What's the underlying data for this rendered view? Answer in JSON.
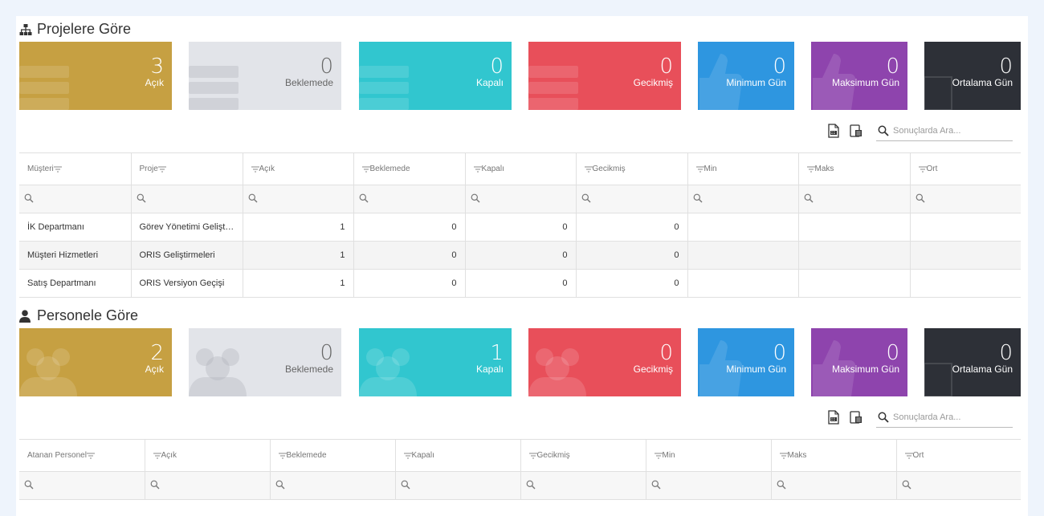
{
  "colors": {
    "acik": "#c6a042",
    "beklemede": "#e2e4e9",
    "kapali": "#31c6cf",
    "gecikmis": "#e84f5a",
    "minimum": "#2e96e0",
    "maksimum": "#8e44ad",
    "ortalama": "#2d3037"
  },
  "projects": {
    "title": "Projelere Göre",
    "title_icon": "sitemap-icon",
    "tiles": [
      {
        "value": "3",
        "label": "Açık",
        "icon": "server-icon"
      },
      {
        "value": "0",
        "label": "Beklemede",
        "icon": "server-icon"
      },
      {
        "value": "0",
        "label": "Kapalı",
        "icon": "server-icon"
      },
      {
        "value": "0",
        "label": "Gecikmiş",
        "icon": "server-icon"
      },
      {
        "value": "0",
        "label": "Minimum Gün",
        "icon": "thumbs-up-icon"
      },
      {
        "value": "0",
        "label": "Maksimum Gün",
        "icon": "thumbs-up-icon"
      },
      {
        "value": "0",
        "label": "Ortalama Gün",
        "icon": "square-icon"
      }
    ],
    "search_placeholder": "Sonuçlarda Ara...",
    "columns": [
      "Müşteri",
      "Proje",
      "Açık",
      "Beklemede",
      "Kapalı",
      "Gecikmiş",
      "Min",
      "Maks",
      "Ort"
    ],
    "rows": [
      [
        "İK Departmanı",
        "Görev Yönetimi Geliştirmeleri",
        "1",
        "0",
        "0",
        "0",
        "",
        "",
        ""
      ],
      [
        "Müşteri Hizmetleri",
        "ORIS Geliştirmeleri",
        "1",
        "0",
        "0",
        "0",
        "",
        "",
        ""
      ],
      [
        "Satış Departmanı",
        "ORIS Versiyon Geçişi",
        "1",
        "0",
        "0",
        "0",
        "",
        "",
        ""
      ]
    ]
  },
  "personnel": {
    "title": "Personele Göre",
    "title_icon": "user-icon",
    "tiles": [
      {
        "value": "2",
        "label": "Açık",
        "icon": "users-icon"
      },
      {
        "value": "0",
        "label": "Beklemede",
        "icon": "users-icon"
      },
      {
        "value": "1",
        "label": "Kapalı",
        "icon": "users-icon"
      },
      {
        "value": "0",
        "label": "Gecikmiş",
        "icon": "users-icon"
      },
      {
        "value": "0",
        "label": "Minimum Gün",
        "icon": "thumbs-up-icon"
      },
      {
        "value": "0",
        "label": "Maksimum Gün",
        "icon": "thumbs-up-icon"
      },
      {
        "value": "0",
        "label": "Ortalama Gün",
        "icon": "square-icon"
      }
    ],
    "search_placeholder": "Sonuçlarda Ara...",
    "columns": [
      "Atanan Personel",
      "Açık",
      "Beklemede",
      "Kapalı",
      "Gecikmiş",
      "Min",
      "Maks",
      "Ort"
    ]
  }
}
